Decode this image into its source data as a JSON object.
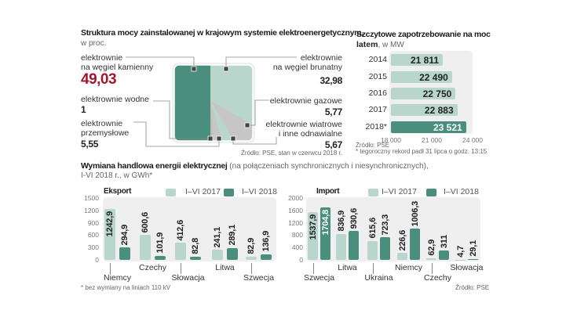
{
  "structure": {
    "title": "Struktura mocy zainstalowanej w krajowym systemie elektroenergetycznym,",
    "unit": "w proc.",
    "items": [
      {
        "label1": "elektrownie",
        "label2": "na węgiel kamienny",
        "value": "49,03"
      },
      {
        "label1": "elektrownie",
        "label2": "na węgiel brunatny",
        "value": "32,98"
      },
      {
        "label1": "elektrownie wodne",
        "value": "1"
      },
      {
        "label1": "elektrownie gazowe",
        "value": "5,77"
      },
      {
        "label1": "elektrownie",
        "label2": "przemysłowe",
        "value": "5,55"
      },
      {
        "label1": "elektrownie wiatrowe",
        "label2": "i inne odnawialne",
        "value": "5,67"
      }
    ],
    "source": "Źródło: PSE, stan w czerwcu 2018 r."
  },
  "peak": {
    "title": "Szczytowe zapotrzebowanie na moc",
    "title2_bold": "latem",
    "title2_rest": ", w MW",
    "source": "Źródło: PSE",
    "footnote": "* tegoroczny rekord padł 31 lipca o godz. 13:15"
  },
  "trade": {
    "title_bold": "Wymiana handlowa  energii elektrycznej",
    "title_rest": " (na połączeniach synchronicznych i niesynchronicznych),",
    "title_line2": "I-VI 2018 r., w GWh*",
    "legend_2017": "I–VI  2017",
    "legend_2018": "I–VI 2018",
    "footnote": "* bez wymiany na liniach 110 kV",
    "source": "Źródło: PSE"
  },
  "colors": {
    "dark": "#4a8f7e",
    "light": "#b9d6cc",
    "gray": "#c6c6c6",
    "red": "#a3162e"
  },
  "chart_data": [
    {
      "type": "pie",
      "title": "Struktura mocy zainstalowanej w krajowym systemie elektroenergetycznym, w proc.",
      "categories": [
        "elektrownie na węgiel kamienny",
        "elektrownie na węgiel brunatny",
        "elektrownie wodne",
        "elektrownie gazowe",
        "elektrownie przemysłowe",
        "elektrownie wiatrowe i inne odnawialne"
      ],
      "values": [
        49.03,
        32.98,
        1,
        5.77,
        5.55,
        5.67
      ]
    },
    {
      "type": "bar",
      "orientation": "horizontal",
      "title": "Szczytowe zapotrzebowanie na moc latem, w MW",
      "categories": [
        "2014",
        "2015",
        "2016",
        "2017",
        "2018*"
      ],
      "values": [
        21811,
        22490,
        22750,
        22883,
        23521
      ],
      "value_labels": [
        "21 811",
        "22 490",
        "22 750",
        "22 883",
        "23 521"
      ],
      "xlim": [
        18000,
        24000
      ],
      "xticks": [
        "18 000",
        "21 000",
        "24 000"
      ]
    },
    {
      "type": "bar",
      "title": "Eksport",
      "categories": [
        "Niemcy",
        "Czechy",
        "Słowacja",
        "Litwa",
        "Szwecja"
      ],
      "series": [
        {
          "name": "I–VI 2017",
          "values": [
            1242.9,
            600.6,
            412.6,
            241.1,
            82.9
          ],
          "labels": [
            "1242,9",
            "600,6",
            "412,6",
            "241,1",
            "82,9"
          ]
        },
        {
          "name": "I–VI 2018",
          "values": [
            294.9,
            101.9,
            82.8,
            289.1,
            136.9
          ],
          "labels": [
            "294,9",
            "101,9",
            "82,8",
            "289,1",
            "136,9"
          ]
        }
      ],
      "ylim": [
        0,
        1500
      ],
      "yticks": [
        "0",
        "300",
        "600",
        "900",
        "1200",
        "1500"
      ]
    },
    {
      "type": "bar",
      "title": "Import",
      "categories": [
        "Szwecja",
        "Litwa",
        "Ukraina",
        "Niemcy",
        "Czechy",
        "Słowacja"
      ],
      "series": [
        {
          "name": "I–VI 2017",
          "values": [
            1537.9,
            836.9,
            615.6,
            226.6,
            62.9,
            4.7
          ],
          "labels": [
            "1537,9",
            "836,9",
            "615,6",
            "226,6",
            "62,9",
            "4,7"
          ]
        },
        {
          "name": "I–VI 2018",
          "values": [
            1704.8,
            930.6,
            723.3,
            1006.3,
            311,
            29.1
          ],
          "labels": [
            "1704,8",
            "930,6",
            "723,3",
            "1006,3",
            "311",
            "29,1"
          ]
        }
      ],
      "ylim": [
        0,
        2000
      ],
      "yticks": [
        "0",
        "400",
        "800",
        "1200",
        "1600",
        "2000"
      ]
    }
  ]
}
